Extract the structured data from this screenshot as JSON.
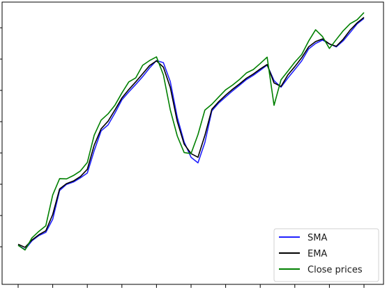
{
  "chart_data": {
    "type": "line",
    "title": "",
    "xlabel": "",
    "ylabel": "",
    "xlim": [
      0,
      100
    ],
    "ylim": [
      0,
      100
    ],
    "grid": false,
    "legend_position": "lower right",
    "x": [
      0,
      2,
      4,
      6,
      8,
      10,
      12,
      14,
      16,
      18,
      20,
      22,
      24,
      26,
      28,
      30,
      32,
      34,
      36,
      38,
      40,
      42,
      44,
      46,
      48,
      50,
      52,
      54,
      56,
      58,
      60,
      62,
      64,
      66,
      68,
      70,
      72,
      74,
      76,
      78,
      80,
      82,
      84,
      86,
      88,
      90,
      92,
      94,
      96,
      98,
      100
    ],
    "series": [
      {
        "name": "SMA",
        "color": "#1f1fff",
        "values": [
          11.4,
          9.8,
          13.1,
          15.1,
          16.3,
          21.3,
          32.2,
          34.5,
          35.4,
          37.0,
          38.8,
          47.3,
          54.8,
          57.1,
          61.6,
          66.6,
          69.6,
          72.4,
          75.4,
          78.7,
          81.5,
          80.7,
          73.5,
          60.0,
          50.6,
          44.8,
          42.7,
          50.4,
          62.4,
          65.4,
          67.7,
          70.0,
          72.1,
          74.3,
          75.9,
          77.8,
          79.8,
          73.9,
          71.4,
          74.9,
          78.1,
          81.4,
          85.9,
          88.0,
          89.3,
          87.8,
          86.7,
          89.0,
          92.2,
          95.4,
          97.5
        ]
      },
      {
        "name": "EMA",
        "color": "#000000",
        "values": [
          11.8,
          10.6,
          13.4,
          15.4,
          16.9,
          23.1,
          32.8,
          34.8,
          35.8,
          37.5,
          40.2,
          49.4,
          55.6,
          58.5,
          62.8,
          67.3,
          70.5,
          73.4,
          76.5,
          79.6,
          81.4,
          79.0,
          71.3,
          58.4,
          49.8,
          46.2,
          44.8,
          53.1,
          63.0,
          65.9,
          68.4,
          70.6,
          72.6,
          74.8,
          76.4,
          78.3,
          80.0,
          73.0,
          71.7,
          76.1,
          79.2,
          82.6,
          86.7,
          88.7,
          89.7,
          87.8,
          86.9,
          89.6,
          93.1,
          95.8,
          97.9
        ]
      },
      {
        "name": "Close prices",
        "color": "#008000",
        "values": [
          11.4,
          9.6,
          14.2,
          16.7,
          18.8,
          30.5,
          36.7,
          36.6,
          37.9,
          39.6,
          42.8,
          53.2,
          58.9,
          61.3,
          64.6,
          69.2,
          73.4,
          74.9,
          79.7,
          81.5,
          82.9,
          76.1,
          62.8,
          52.9,
          46.6,
          46.2,
          53.4,
          62.7,
          64.9,
          67.7,
          70.4,
          72.2,
          74.3,
          76.8,
          78.1,
          80.4,
          82.8,
          64.5,
          74.2,
          77.5,
          80.9,
          83.8,
          88.9,
          93.2,
          90.6,
          86.1,
          89.5,
          92.8,
          95.5,
          97.0,
          99.7
        ]
      }
    ],
    "legend": [
      "SMA",
      "EMA",
      "Close prices"
    ]
  }
}
